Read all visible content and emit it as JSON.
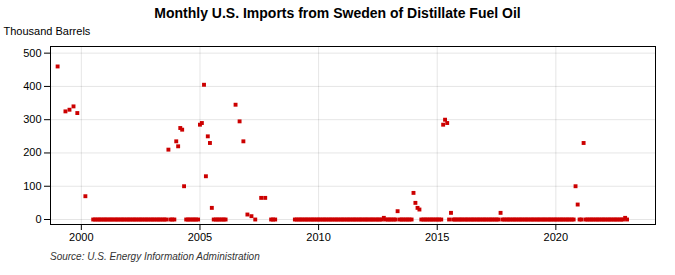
{
  "chart_data": {
    "type": "scatter",
    "title": "Monthly U.S. Imports from Sweden of Distillate Fuel Oil",
    "ylabel": "Thousand Barrels",
    "caption": "Source: U.S. Energy Information Administration",
    "color": "#cc0000",
    "marker": "square",
    "grid": true,
    "xlim": [
      1998.7,
      2024.2
    ],
    "ylim": [
      -15,
      520
    ],
    "xticks": [
      2000,
      2005,
      2010,
      2015,
      2020
    ],
    "yticks": [
      0,
      100,
      200,
      300,
      400,
      500
    ],
    "x": [
      1999.0,
      1999.33,
      1999.5,
      1999.67,
      1999.83,
      2000.17,
      2000.5,
      2000.58,
      2000.67,
      2000.75,
      2000.83,
      2000.92,
      2001.0,
      2001.08,
      2001.17,
      2001.25,
      2001.33,
      2001.42,
      2001.5,
      2001.58,
      2001.67,
      2001.75,
      2001.83,
      2001.92,
      2002.0,
      2002.08,
      2002.17,
      2002.25,
      2002.33,
      2002.42,
      2002.5,
      2002.58,
      2002.67,
      2002.75,
      2002.83,
      2002.92,
      2003.0,
      2003.08,
      2003.17,
      2003.25,
      2003.33,
      2003.42,
      2003.5,
      2003.58,
      2003.67,
      2003.75,
      2003.83,
      2003.92,
      2004.0,
      2004.08,
      2004.17,
      2004.25,
      2004.33,
      2004.42,
      2004.5,
      2004.58,
      2004.67,
      2004.75,
      2004.83,
      2004.92,
      2005.0,
      2005.08,
      2005.17,
      2005.25,
      2005.33,
      2005.42,
      2005.5,
      2005.58,
      2005.67,
      2005.75,
      2005.83,
      2005.92,
      2006.0,
      2006.08,
      2006.5,
      2006.67,
      2006.83,
      2007.0,
      2007.17,
      2007.33,
      2007.58,
      2007.75,
      2008.0,
      2008.08,
      2008.17,
      2009.0,
      2009.08,
      2009.17,
      2009.25,
      2009.33,
      2009.42,
      2009.5,
      2009.58,
      2009.67,
      2009.75,
      2009.83,
      2009.92,
      2010.0,
      2010.08,
      2010.17,
      2010.25,
      2010.33,
      2010.42,
      2010.5,
      2010.58,
      2010.67,
      2010.75,
      2010.83,
      2010.92,
      2011.0,
      2011.08,
      2011.17,
      2011.25,
      2011.33,
      2011.42,
      2011.5,
      2011.58,
      2011.67,
      2011.75,
      2011.83,
      2011.92,
      2012.0,
      2012.08,
      2012.17,
      2012.25,
      2012.33,
      2012.42,
      2012.5,
      2012.58,
      2012.67,
      2012.75,
      2012.83,
      2012.92,
      2013.0,
      2013.08,
      2013.17,
      2013.25,
      2013.33,
      2013.42,
      2013.5,
      2013.58,
      2013.67,
      2013.75,
      2013.83,
      2013.92,
      2014.0,
      2014.08,
      2014.17,
      2014.25,
      2014.33,
      2014.42,
      2014.5,
      2014.58,
      2014.67,
      2014.75,
      2014.83,
      2014.92,
      2015.0,
      2015.08,
      2015.17,
      2015.25,
      2015.33,
      2015.42,
      2015.5,
      2015.58,
      2015.67,
      2015.75,
      2015.83,
      2015.92,
      2016.0,
      2016.08,
      2016.17,
      2016.25,
      2016.33,
      2016.42,
      2016.5,
      2016.58,
      2016.67,
      2016.75,
      2016.83,
      2016.92,
      2017.0,
      2017.08,
      2017.17,
      2017.25,
      2017.33,
      2017.42,
      2017.5,
      2017.58,
      2017.67,
      2017.75,
      2017.83,
      2017.92,
      2018.0,
      2018.08,
      2018.17,
      2018.25,
      2018.33,
      2018.42,
      2018.5,
      2018.58,
      2018.67,
      2018.75,
      2018.83,
      2018.92,
      2019.0,
      2019.08,
      2019.17,
      2019.25,
      2019.33,
      2019.42,
      2019.5,
      2019.58,
      2019.67,
      2019.75,
      2019.83,
      2019.92,
      2020.0,
      2020.08,
      2020.17,
      2020.25,
      2020.33,
      2020.42,
      2020.5,
      2020.58,
      2020.67,
      2020.75,
      2020.83,
      2020.92,
      2021.0,
      2021.08,
      2021.17,
      2021.25,
      2021.33,
      2021.42,
      2021.5,
      2021.58,
      2021.67,
      2021.75,
      2021.83,
      2021.92,
      2022.0,
      2022.08,
      2022.17,
      2022.25,
      2022.33,
      2022.42,
      2022.5,
      2022.58,
      2022.67,
      2022.75,
      2022.83,
      2022.92,
      2023.0
    ],
    "values": [
      460,
      325,
      330,
      340,
      320,
      70,
      0,
      0,
      0,
      0,
      0,
      0,
      0,
      0,
      0,
      0,
      0,
      0,
      0,
      0,
      0,
      0,
      0,
      0,
      0,
      0,
      0,
      0,
      0,
      0,
      0,
      0,
      0,
      0,
      0,
      0,
      0,
      0,
      0,
      0,
      0,
      0,
      0,
      0,
      210,
      0,
      0,
      0,
      235,
      220,
      275,
      270,
      100,
      0,
      0,
      0,
      0,
      0,
      0,
      0,
      285,
      290,
      405,
      130,
      250,
      230,
      35,
      0,
      0,
      0,
      0,
      0,
      0,
      0,
      345,
      295,
      235,
      15,
      10,
      0,
      65,
      65,
      0,
      0,
      0,
      0,
      0,
      0,
      0,
      0,
      0,
      0,
      0,
      0,
      0,
      0,
      0,
      0,
      0,
      0,
      0,
      0,
      0,
      0,
      0,
      0,
      0,
      0,
      0,
      0,
      0,
      0,
      0,
      0,
      0,
      0,
      0,
      0,
      0,
      0,
      0,
      0,
      0,
      0,
      0,
      0,
      0,
      0,
      0,
      0,
      5,
      0,
      0,
      0,
      0,
      0,
      0,
      25,
      0,
      0,
      0,
      0,
      0,
      0,
      0,
      80,
      50,
      35,
      30,
      0,
      0,
      0,
      0,
      0,
      0,
      0,
      0,
      0,
      0,
      0,
      285,
      300,
      290,
      0,
      20,
      0,
      0,
      0,
      0,
      0,
      0,
      0,
      0,
      0,
      0,
      0,
      0,
      0,
      0,
      0,
      0,
      0,
      0,
      0,
      0,
      0,
      0,
      0,
      0,
      20,
      0,
      0,
      0,
      0,
      0,
      0,
      0,
      0,
      0,
      0,
      0,
      0,
      0,
      0,
      0,
      0,
      0,
      0,
      0,
      0,
      0,
      0,
      0,
      0,
      0,
      0,
      0,
      0,
      0,
      0,
      0,
      0,
      0,
      0,
      0,
      0,
      0,
      100,
      45,
      0,
      0,
      230,
      0,
      0,
      0,
      0,
      0,
      0,
      0,
      0,
      0,
      0,
      0,
      0,
      0,
      0,
      0,
      0,
      0,
      0,
      0,
      0,
      5,
      0
    ]
  }
}
